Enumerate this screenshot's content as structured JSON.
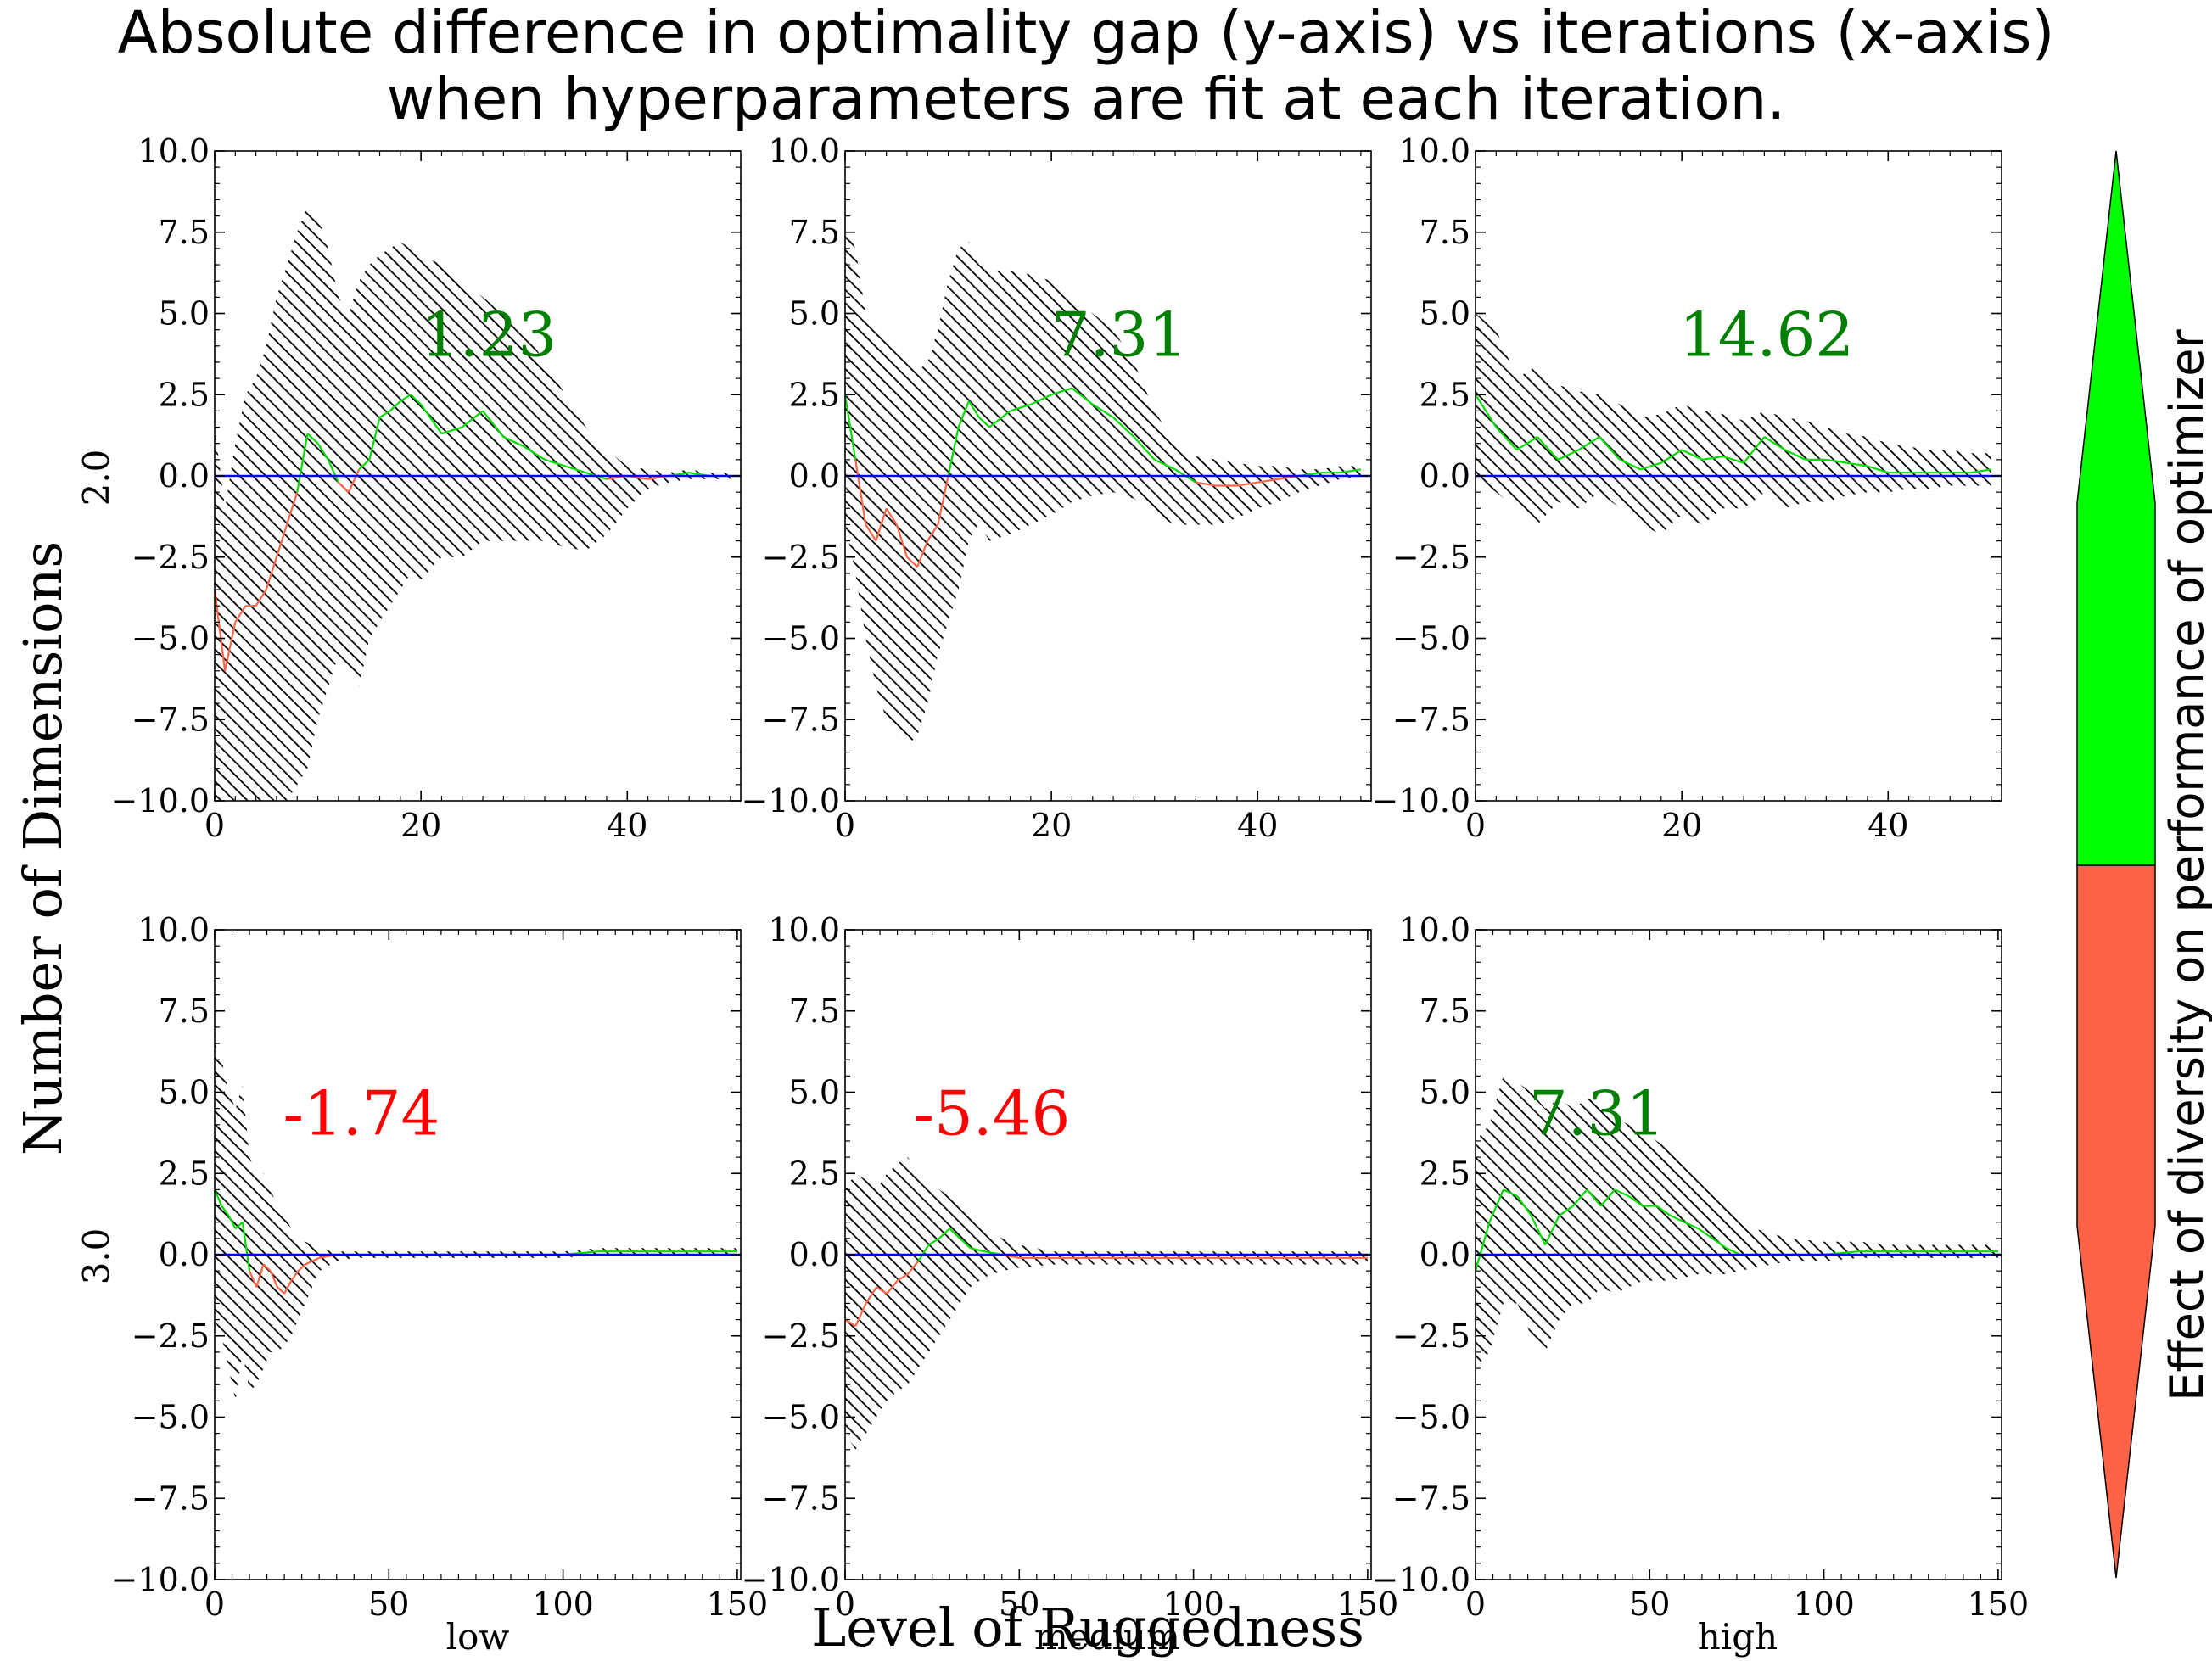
{
  "title": {
    "line1": "Absolute difference in optimality gap (y-axis) vs iterations (x-axis)",
    "line2": "when hyperparameters are fit at each iteration."
  },
  "axis_labels": {
    "x": "Level of Ruggedness",
    "y": "Number of Dimensions",
    "colorbar": "Effect of diversity on performance of optimizer"
  },
  "column_labels": [
    "low",
    "medium",
    "high"
  ],
  "row_labels": [
    "2.0",
    "3.0"
  ],
  "colors": {
    "positive_text": "#008000",
    "negative_text": "#ff0000",
    "positive_line": "#00dd00",
    "negative_line": "#ff6347",
    "zero_line": "#0000ff",
    "cbar_positive": "#00ff00",
    "cbar_negative": "#ff6347",
    "band_hatch": "#000000"
  },
  "chart_data": [
    {
      "type": "line",
      "row": "2.0",
      "column": "low",
      "xlim": [
        0,
        51
      ],
      "ylim": [
        -10,
        10
      ],
      "xticks": [
        0,
        20,
        40
      ],
      "yticks": [
        -10.0,
        -7.5,
        -5.0,
        -2.5,
        0.0,
        2.5,
        5.0,
        7.5,
        10.0
      ],
      "annotation": "1.23",
      "annotation_sign": "positive",
      "x": [
        0,
        1,
        2,
        3,
        4,
        5,
        6,
        7,
        8,
        9,
        10,
        11,
        12,
        13,
        14,
        15,
        16,
        17,
        18,
        19,
        20,
        22,
        24,
        26,
        28,
        30,
        32,
        34,
        36,
        38,
        40,
        42,
        44,
        46,
        48,
        50
      ],
      "mean": [
        -3.5,
        -6.0,
        -4.5,
        -4.0,
        -4.0,
        -3.5,
        -2.5,
        -1.5,
        -0.5,
        1.3,
        1.0,
        0.5,
        -0.2,
        -0.5,
        0.2,
        0.5,
        1.8,
        2.0,
        2.3,
        2.5,
        2.2,
        1.3,
        1.5,
        2.0,
        1.2,
        0.9,
        0.5,
        0.3,
        0.1,
        -0.1,
        0.0,
        -0.1,
        0.0,
        0.1,
        0.0,
        0.0
      ],
      "upper": [
        1.5,
        -1.0,
        1.0,
        2.5,
        3.0,
        4.0,
        5.5,
        6.5,
        7.5,
        8.3,
        8.0,
        7.0,
        5.5,
        5.0,
        6.0,
        6.5,
        6.8,
        7.0,
        7.2,
        7.0,
        6.8,
        6.5,
        6.0,
        5.5,
        5.0,
        4.5,
        3.5,
        2.5,
        1.5,
        0.8,
        0.3,
        0.2,
        0.1,
        0.2,
        0.1,
        0.1
      ],
      "lower": [
        -10.0,
        -10.0,
        -10.0,
        -10.0,
        -10.0,
        -10.0,
        -10.0,
        -10.0,
        -9.5,
        -9.0,
        -7.5,
        -6.5,
        -5.5,
        -6.0,
        -6.5,
        -5.0,
        -4.5,
        -4.0,
        -3.5,
        -3.0,
        -3.2,
        -2.5,
        -2.5,
        -2.0,
        -2.0,
        -2.0,
        -2.0,
        -2.2,
        -2.3,
        -1.8,
        -1.0,
        -0.4,
        -0.2,
        -0.1,
        -0.1,
        -0.1
      ]
    },
    {
      "type": "line",
      "row": "2.0",
      "column": "medium",
      "xlim": [
        0,
        51
      ],
      "ylim": [
        -10,
        10
      ],
      "xticks": [
        0,
        20,
        40
      ],
      "yticks": [
        -10.0,
        -7.5,
        -5.0,
        -2.5,
        0.0,
        2.5,
        5.0,
        7.5,
        10.0
      ],
      "annotation": "7.31",
      "annotation_sign": "positive",
      "x": [
        0,
        1,
        2,
        3,
        4,
        5,
        6,
        7,
        8,
        9,
        10,
        11,
        12,
        13,
        14,
        16,
        18,
        20,
        22,
        24,
        26,
        28,
        30,
        32,
        34,
        36,
        38,
        40,
        42,
        44,
        46,
        48,
        50
      ],
      "mean": [
        2.5,
        0.5,
        -1.5,
        -2.0,
        -1.0,
        -1.5,
        -2.5,
        -2.8,
        -2.0,
        -1.5,
        0.0,
        1.5,
        2.3,
        1.8,
        1.5,
        2.0,
        2.2,
        2.5,
        2.7,
        2.2,
        1.8,
        1.2,
        0.5,
        0.2,
        -0.2,
        -0.3,
        -0.3,
        -0.2,
        -0.1,
        0.0,
        0.1,
        0.1,
        0.2
      ],
      "upper": [
        7.7,
        7.0,
        5.0,
        4.5,
        4.2,
        4.0,
        3.5,
        3.2,
        3.5,
        4.5,
        6.0,
        7.0,
        7.2,
        6.5,
        6.3,
        6.3,
        6.2,
        6.0,
        5.5,
        5.0,
        4.5,
        3.5,
        2.0,
        1.0,
        0.6,
        0.5,
        0.4,
        0.3,
        0.3,
        0.2,
        0.2,
        0.3,
        0.3
      ],
      "lower": [
        -1.5,
        -3.0,
        -5.0,
        -6.5,
        -7.5,
        -8.0,
        -8.3,
        -8.0,
        -7.0,
        -5.5,
        -4.5,
        -3.5,
        -2.0,
        -1.5,
        -2.0,
        -1.8,
        -1.5,
        -1.2,
        -0.8,
        -0.6,
        -0.5,
        -0.7,
        -1.2,
        -1.5,
        -1.5,
        -1.5,
        -1.3,
        -1.0,
        -0.8,
        -0.5,
        -0.3,
        -0.1,
        0.0
      ]
    },
    {
      "type": "line",
      "row": "2.0",
      "column": "high",
      "xlim": [
        0,
        51
      ],
      "ylim": [
        -10,
        10
      ],
      "xticks": [
        0,
        20,
        40
      ],
      "yticks": [
        -10.0,
        -7.5,
        -5.0,
        -2.5,
        0.0,
        2.5,
        5.0,
        7.5,
        10.0
      ],
      "annotation": "14.62",
      "annotation_sign": "positive",
      "x": [
        0,
        2,
        4,
        6,
        8,
        10,
        12,
        14,
        16,
        18,
        20,
        22,
        24,
        26,
        28,
        30,
        32,
        34,
        36,
        38,
        40,
        42,
        44,
        46,
        48,
        50
      ],
      "mean": [
        2.5,
        1.5,
        0.8,
        1.2,
        0.5,
        0.8,
        1.2,
        0.5,
        0.2,
        0.4,
        0.8,
        0.5,
        0.6,
        0.4,
        1.2,
        0.8,
        0.5,
        0.5,
        0.4,
        0.3,
        0.1,
        0.1,
        0.1,
        0.1,
        0.1,
        0.2
      ],
      "upper": [
        5.0,
        4.5,
        3.0,
        3.4,
        2.8,
        2.6,
        2.5,
        2.2,
        1.8,
        1.9,
        2.2,
        2.0,
        1.9,
        1.7,
        2.0,
        1.8,
        1.7,
        1.5,
        1.3,
        1.2,
        1.0,
        0.9,
        0.8,
        0.8,
        0.7,
        0.7
      ],
      "lower": [
        0.0,
        -0.5,
        -1.0,
        -1.5,
        -0.8,
        -1.0,
        -0.5,
        -1.0,
        -1.5,
        -1.8,
        -1.2,
        -1.5,
        -1.0,
        -1.0,
        -0.5,
        -1.0,
        -0.8,
        -0.8,
        -0.6,
        -0.5,
        -0.5,
        -0.4,
        -0.4,
        -0.3,
        -0.3,
        -0.3
      ]
    },
    {
      "type": "line",
      "row": "3.0",
      "column": "low",
      "xlim": [
        0,
        151
      ],
      "ylim": [
        -10,
        10
      ],
      "xticks": [
        0,
        50,
        100,
        150
      ],
      "yticks": [
        -10.0,
        -7.5,
        -5.0,
        -2.5,
        0.0,
        2.5,
        5.0,
        7.5,
        10.0
      ],
      "annotation": "-1.74",
      "annotation_sign": "negative",
      "x": [
        0,
        2,
        4,
        6,
        8,
        10,
        12,
        14,
        16,
        18,
        20,
        22,
        24,
        26,
        28,
        30,
        35,
        40,
        50,
        60,
        80,
        100,
        110,
        120,
        130,
        140,
        150
      ],
      "mean": [
        2.0,
        1.5,
        1.2,
        0.8,
        1.0,
        -0.5,
        -1.0,
        -0.3,
        -0.5,
        -1.0,
        -1.2,
        -0.8,
        -0.5,
        -0.3,
        -0.2,
        -0.1,
        0.0,
        0.0,
        0.0,
        0.0,
        0.0,
        0.0,
        0.1,
        0.1,
        0.1,
        0.1,
        0.1
      ],
      "upper": [
        6.5,
        6.0,
        5.0,
        4.5,
        5.2,
        3.0,
        2.5,
        2.5,
        2.0,
        1.5,
        1.2,
        0.8,
        0.5,
        0.4,
        0.3,
        0.2,
        0.1,
        0.1,
        0.1,
        0.1,
        0.1,
        0.1,
        0.2,
        0.2,
        0.2,
        0.2,
        0.2
      ],
      "lower": [
        -2.0,
        -2.5,
        -3.5,
        -4.5,
        -3.0,
        -4.2,
        -4.0,
        -3.5,
        -3.0,
        -3.0,
        -2.8,
        -2.5,
        -2.0,
        -1.5,
        -1.0,
        -0.5,
        -0.2,
        -0.1,
        -0.1,
        -0.1,
        -0.1,
        -0.1,
        0.0,
        0.0,
        0.0,
        0.0,
        0.0
      ]
    },
    {
      "type": "line",
      "row": "3.0",
      "column": "medium",
      "xlim": [
        0,
        151
      ],
      "ylim": [
        -10,
        10
      ],
      "xticks": [
        0,
        50,
        100,
        150
      ],
      "yticks": [
        -10.0,
        -7.5,
        -5.0,
        -2.5,
        0.0,
        2.5,
        5.0,
        7.5,
        10.0
      ],
      "annotation": "-5.46",
      "annotation_sign": "negative",
      "x": [
        0,
        3,
        6,
        9,
        12,
        15,
        18,
        21,
        24,
        27,
        30,
        33,
        36,
        40,
        45,
        50,
        60,
        80,
        100,
        120,
        140,
        150
      ],
      "mean": [
        -2.0,
        -2.2,
        -1.5,
        -1.0,
        -1.2,
        -0.8,
        -0.6,
        -0.2,
        0.3,
        0.5,
        0.8,
        0.5,
        0.2,
        0.1,
        0.0,
        -0.1,
        -0.1,
        -0.1,
        -0.1,
        -0.1,
        -0.1,
        -0.1
      ],
      "upper": [
        2.0,
        2.5,
        2.3,
        2.0,
        2.5,
        2.8,
        3.0,
        2.5,
        2.2,
        2.0,
        1.8,
        1.5,
        1.2,
        0.8,
        0.5,
        0.3,
        0.1,
        0.1,
        0.1,
        0.1,
        0.1,
        0.1
      ],
      "lower": [
        -5.5,
        -6.0,
        -5.5,
        -5.0,
        -4.5,
        -4.2,
        -4.0,
        -3.5,
        -3.0,
        -2.5,
        -2.0,
        -1.5,
        -1.0,
        -0.7,
        -0.5,
        -0.4,
        -0.3,
        -0.3,
        -0.3,
        -0.3,
        -0.3,
        -0.3
      ]
    },
    {
      "type": "line",
      "row": "3.0",
      "column": "high",
      "xlim": [
        0,
        151
      ],
      "ylim": [
        -10,
        10
      ],
      "xticks": [
        0,
        50,
        100,
        150
      ],
      "yticks": [
        -10.0,
        -7.5,
        -5.0,
        -2.5,
        0.0,
        2.5,
        5.0,
        7.5,
        10.0
      ],
      "annotation": "7.31",
      "annotation_sign": "positive",
      "x": [
        0,
        4,
        8,
        12,
        16,
        20,
        24,
        28,
        32,
        36,
        40,
        44,
        48,
        52,
        56,
        60,
        64,
        68,
        72,
        76,
        80,
        90,
        100,
        110,
        120,
        130,
        140,
        150
      ],
      "mean": [
        -0.5,
        1.0,
        2.0,
        1.8,
        1.2,
        0.3,
        1.2,
        1.5,
        2.0,
        1.5,
        2.0,
        1.8,
        1.5,
        1.5,
        1.2,
        1.0,
        0.8,
        0.5,
        0.2,
        0.0,
        0.0,
        0.0,
        0.0,
        0.1,
        0.1,
        0.1,
        0.1,
        0.1
      ],
      "upper": [
        3.5,
        4.0,
        5.5,
        5.3,
        5.0,
        4.5,
        4.8,
        4.5,
        4.8,
        4.7,
        4.2,
        4.0,
        3.8,
        3.5,
        3.2,
        2.8,
        2.5,
        2.0,
        1.6,
        1.2,
        0.8,
        0.5,
        0.4,
        0.4,
        0.3,
        0.3,
        0.3,
        0.3
      ],
      "lower": [
        -3.5,
        -3.0,
        -1.5,
        -1.5,
        -2.5,
        -3.0,
        -2.0,
        -1.5,
        -1.5,
        -1.0,
        -1.2,
        -1.0,
        -0.8,
        -0.8,
        -0.8,
        -0.7,
        -0.6,
        -0.6,
        -0.6,
        -0.5,
        -0.4,
        -0.2,
        -0.2,
        -0.1,
        -0.1,
        -0.1,
        -0.1,
        -0.1
      ]
    }
  ]
}
